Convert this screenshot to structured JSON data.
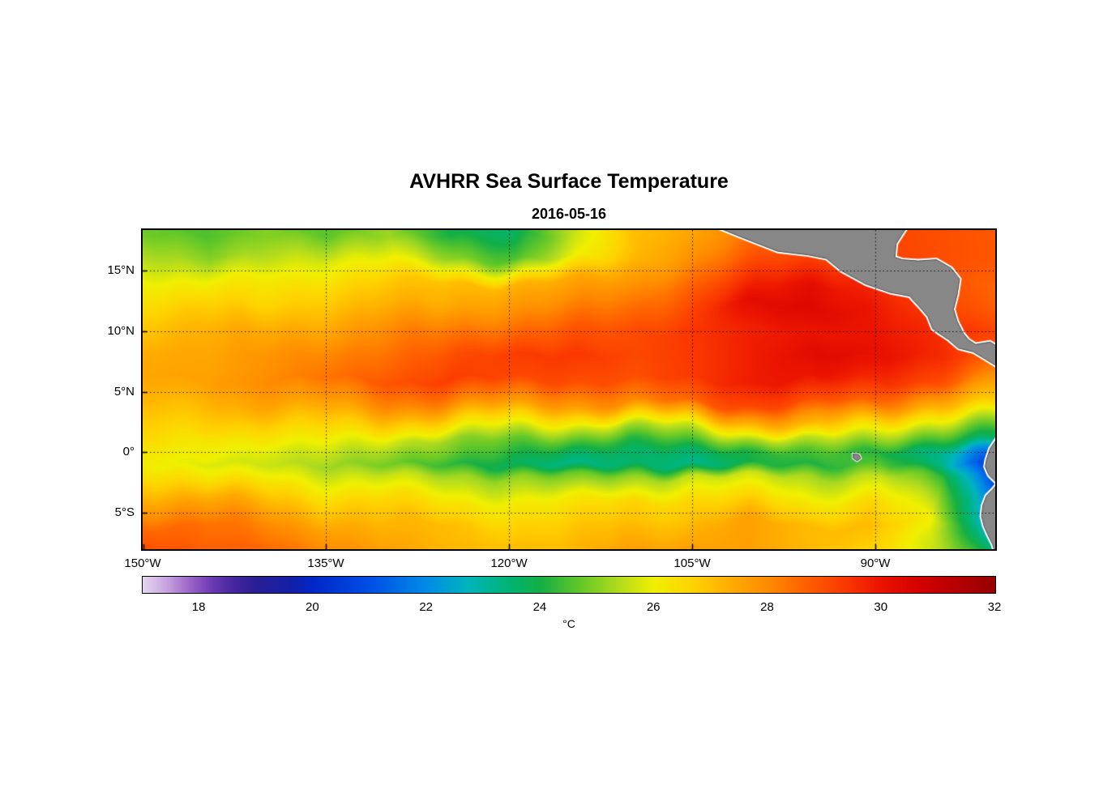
{
  "figure": {
    "title": "AVHRR Sea Surface Temperature",
    "subtitle": "2016-05-16"
  },
  "axes": {
    "x_ticks": [
      {
        "label": "150°W",
        "lon": -150
      },
      {
        "label": "135°W",
        "lon": -135
      },
      {
        "label": "120°W",
        "lon": -120
      },
      {
        "label": "105°W",
        "lon": -105
      },
      {
        "label": "90°W",
        "lon": -90
      }
    ],
    "y_ticks": [
      {
        "label": "15°N",
        "lat": 15
      },
      {
        "label": "10°N",
        "lat": 10
      },
      {
        "label": "5°N",
        "lat": 5
      },
      {
        "label": "0°",
        "lat": 0
      },
      {
        "label": "5°S",
        "lat": -5
      }
    ]
  },
  "colorbar": {
    "label": "°C",
    "min": 17,
    "max": 32,
    "tick_values": [
      18,
      20,
      22,
      24,
      26,
      28,
      30,
      32
    ]
  },
  "chart_data": {
    "type": "heatmap",
    "title": "AVHRR Sea Surface Temperature",
    "subtitle": "2016-05-16",
    "variable": "sea surface temperature",
    "units": "°C",
    "lon_extent": [
      -150,
      -80.2
    ],
    "lat_extent": [
      -8,
      18.4
    ],
    "value_range": [
      17,
      32
    ],
    "grid": "dotted",
    "colorbar_position": "bottom",
    "lons": [
      -150,
      -145,
      -140,
      -135,
      -130,
      -125,
      -120,
      -115,
      -110,
      -105,
      -100,
      -95,
      -90,
      -85,
      -80
    ],
    "lats": [
      18,
      16,
      14,
      12,
      10,
      8,
      6,
      4,
      2,
      1,
      0,
      -1,
      -2,
      -4,
      -6,
      -8
    ],
    "sst_grid_c": [
      [
        24.8,
        24.5,
        25.0,
        24.6,
        25.2,
        24.0,
        23.6,
        25.5,
        27.0,
        27.5,
        28.5,
        29.0,
        29.2,
        29.0,
        28.8
      ],
      [
        25.5,
        25.0,
        25.5,
        25.8,
        26.0,
        25.0,
        24.5,
        26.0,
        27.2,
        28.0,
        29.0,
        29.3,
        29.2,
        29.0,
        28.8
      ],
      [
        26.2,
        26.0,
        26.2,
        26.5,
        26.8,
        27.0,
        27.2,
        27.4,
        27.8,
        28.6,
        29.6,
        30.2,
        29.6,
        29.0,
        28.6
      ],
      [
        26.6,
        26.8,
        26.6,
        27.0,
        27.3,
        27.4,
        27.8,
        28.0,
        28.4,
        29.0,
        30.2,
        30.4,
        30.0,
        29.2,
        28.8
      ],
      [
        27.0,
        27.3,
        27.4,
        27.5,
        28.0,
        28.3,
        28.5,
        28.8,
        29.0,
        29.4,
        29.8,
        30.0,
        30.0,
        29.6,
        29.2
      ],
      [
        27.4,
        27.5,
        27.9,
        28.1,
        28.5,
        29.0,
        29.3,
        29.4,
        29.1,
        29.4,
        29.9,
        30.3,
        30.1,
        29.6,
        28.6
      ],
      [
        27.5,
        27.6,
        28.0,
        28.4,
        28.9,
        29.3,
        29.1,
        29.0,
        29.0,
        29.4,
        29.9,
        30.0,
        29.6,
        29.0,
        27.6
      ],
      [
        27.2,
        27.1,
        27.5,
        27.6,
        28.0,
        28.1,
        27.8,
        27.6,
        28.0,
        28.6,
        29.1,
        29.0,
        28.6,
        27.2,
        26.8
      ],
      [
        26.8,
        26.6,
        26.6,
        26.6,
        26.6,
        26.2,
        25.8,
        25.6,
        25.2,
        25.6,
        26.6,
        27.2,
        26.2,
        25.2,
        24.6
      ],
      [
        26.6,
        26.2,
        26.2,
        26.1,
        25.8,
        25.2,
        24.8,
        24.6,
        24.2,
        24.6,
        25.2,
        25.6,
        25.2,
        24.2,
        23.6
      ],
      [
        26.2,
        26.1,
        25.8,
        25.6,
        25.2,
        24.8,
        24.2,
        23.7,
        23.6,
        23.6,
        24.1,
        24.6,
        24.1,
        23.2,
        21.2
      ],
      [
        26.1,
        25.8,
        25.6,
        25.2,
        24.8,
        24.2,
        23.7,
        23.2,
        23.6,
        23.2,
        24.1,
        24.1,
        24.6,
        23.2,
        19.6
      ],
      [
        26.6,
        26.2,
        26.1,
        25.7,
        25.6,
        25.2,
        25.1,
        24.7,
        25.1,
        25.6,
        25.6,
        25.2,
        25.6,
        24.2,
        20.2
      ],
      [
        27.6,
        27.5,
        27.1,
        26.7,
        26.6,
        26.2,
        26.1,
        26.1,
        26.6,
        26.6,
        26.6,
        26.1,
        26.6,
        25.2,
        21.6
      ],
      [
        28.6,
        28.5,
        28.1,
        27.6,
        27.2,
        27.1,
        26.7,
        26.7,
        27.1,
        27.1,
        27.6,
        27.1,
        27.1,
        26.1,
        22.2
      ],
      [
        29.1,
        28.7,
        28.6,
        28.1,
        27.6,
        27.2,
        27.1,
        27.1,
        27.6,
        27.6,
        27.6,
        27.1,
        26.7,
        25.6,
        23.5
      ]
    ],
    "colormap_stops": [
      [
        17.0,
        "#E4D6EF"
      ],
      [
        17.4,
        "#C9A6DF"
      ],
      [
        17.8,
        "#9F68C9"
      ],
      [
        18.2,
        "#6E3CB4"
      ],
      [
        18.6,
        "#46269E"
      ],
      [
        19.0,
        "#2A1E96"
      ],
      [
        19.6,
        "#1420A8"
      ],
      [
        20.0,
        "#0028C8"
      ],
      [
        21.0,
        "#0050E6"
      ],
      [
        22.0,
        "#008CE6"
      ],
      [
        22.7,
        "#00B4BE"
      ],
      [
        23.4,
        "#00B478"
      ],
      [
        24.0,
        "#14AF46"
      ],
      [
        24.7,
        "#64C828"
      ],
      [
        25.4,
        "#B4DC1E"
      ],
      [
        26.0,
        "#F0F000"
      ],
      [
        26.7,
        "#FFD200"
      ],
      [
        27.4,
        "#FFAA00"
      ],
      [
        28.0,
        "#FF8C00"
      ],
      [
        28.7,
        "#FF5F00"
      ],
      [
        29.4,
        "#FA3700"
      ],
      [
        30.0,
        "#EB1400"
      ],
      [
        30.7,
        "#D20000"
      ],
      [
        31.4,
        "#B40000"
      ],
      [
        32.0,
        "#960000"
      ]
    ],
    "colors": {
      "land": "#878787",
      "coastline_halo": "#FFFFFF",
      "grid": "#000000",
      "axis": "#000000"
    },
    "land_polygons": {
      "central_america": [
        [
          -103.0,
          18.6
        ],
        [
          -100.8,
          17.7
        ],
        [
          -98.0,
          16.6
        ],
        [
          -95.5,
          16.3
        ],
        [
          -94.0,
          16.0
        ],
        [
          -92.8,
          15.0
        ],
        [
          -90.8,
          13.9
        ],
        [
          -88.8,
          13.2
        ],
        [
          -87.2,
          12.9
        ],
        [
          -86.2,
          11.8
        ],
        [
          -85.7,
          11.2
        ],
        [
          -85.3,
          10.2
        ],
        [
          -84.9,
          9.9
        ],
        [
          -84.0,
          9.3
        ],
        [
          -83.2,
          8.6
        ],
        [
          -82.0,
          8.3
        ],
        [
          -81.0,
          7.7
        ],
        [
          -80.2,
          7.2
        ],
        [
          -79.6,
          7.6
        ],
        [
          -79.8,
          8.6
        ],
        [
          -80.6,
          9.1
        ],
        [
          -81.8,
          8.9
        ],
        [
          -82.4,
          9.3
        ],
        [
          -82.8,
          9.8
        ],
        [
          -83.3,
          10.8
        ],
        [
          -83.6,
          11.8
        ],
        [
          -83.3,
          13.0
        ],
        [
          -83.1,
          14.3
        ],
        [
          -83.8,
          15.2
        ],
        [
          -85.0,
          15.9
        ],
        [
          -86.5,
          15.8
        ],
        [
          -87.8,
          15.9
        ],
        [
          -88.4,
          16.1
        ],
        [
          -88.3,
          17.2
        ],
        [
          -87.8,
          18.0
        ],
        [
          -87.4,
          18.6
        ]
      ],
      "south_america": [
        [
          -79.8,
          1.5
        ],
        [
          -80.2,
          0.9
        ],
        [
          -80.6,
          0.3
        ],
        [
          -80.9,
          -0.6
        ],
        [
          -81.0,
          -1.2
        ],
        [
          -80.7,
          -1.9
        ],
        [
          -80.3,
          -2.3
        ],
        [
          -80.0,
          -2.6
        ],
        [
          -80.4,
          -3.1
        ],
        [
          -80.9,
          -3.6
        ],
        [
          -81.2,
          -4.4
        ],
        [
          -81.3,
          -5.3
        ],
        [
          -81.1,
          -6.1
        ],
        [
          -80.8,
          -6.8
        ],
        [
          -80.4,
          -7.6
        ],
        [
          -80.1,
          -8.6
        ],
        [
          -78.0,
          -8.6
        ],
        [
          -78.0,
          1.5
        ]
      ],
      "galapagos": [
        [
          -91.85,
          -0.15
        ],
        [
          -91.35,
          -0.2
        ],
        [
          -91.2,
          -0.5
        ],
        [
          -91.5,
          -0.72
        ],
        [
          -91.8,
          -0.5
        ]
      ]
    }
  }
}
